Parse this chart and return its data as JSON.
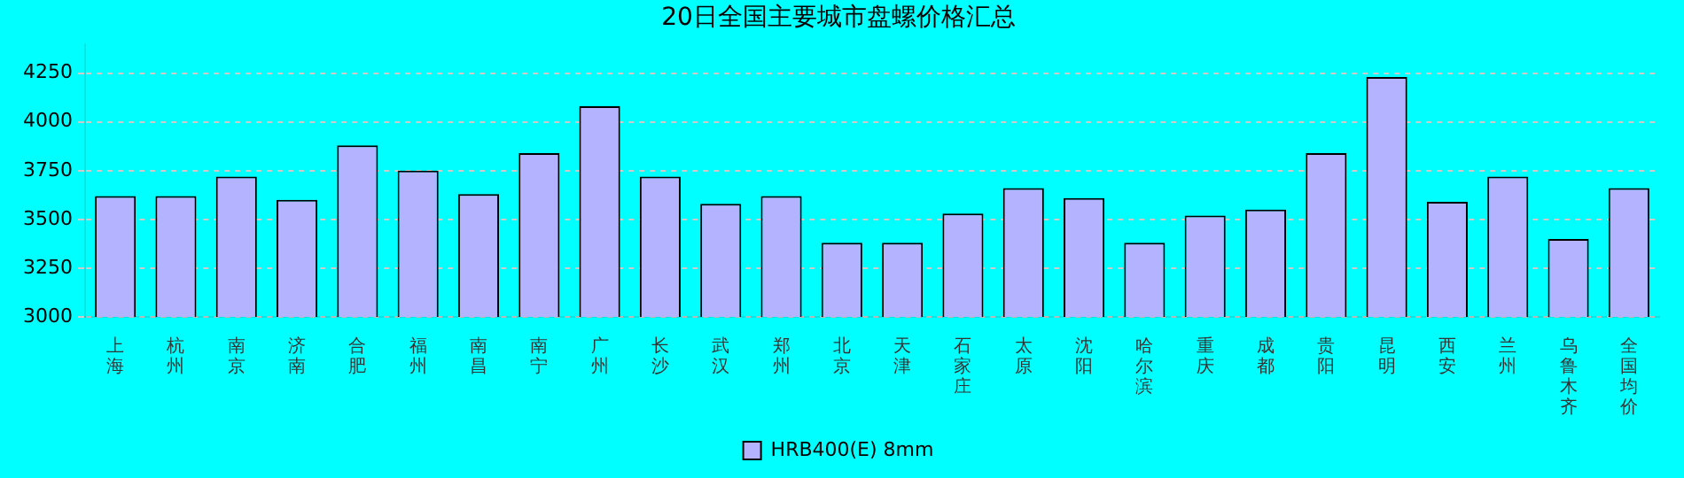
{
  "chart_data": {
    "type": "bar",
    "title": "20日全国主要城市盘螺价格汇总",
    "categories": [
      "上海",
      "杭州",
      "南京",
      "济南",
      "合肥",
      "福州",
      "南昌",
      "南宁",
      "广州",
      "长沙",
      "武汉",
      "郑州",
      "北京",
      "天津",
      "石家庄",
      "太原",
      "沈阳",
      "哈尔滨",
      "重庆",
      "成都",
      "贵阳",
      "昆明",
      "西安",
      "兰州",
      "乌鲁木齐",
      "全国均价"
    ],
    "series": [
      {
        "name": "HRB400(E) 8mm",
        "color": "#b3b3ff",
        "values": [
          3620,
          3620,
          3720,
          3600,
          3880,
          3750,
          3630,
          3840,
          4080,
          3720,
          3580,
          3620,
          3380,
          3380,
          3530,
          3660,
          3610,
          3380,
          3520,
          3550,
          3840,
          4230,
          3590,
          3720,
          3400,
          3660
        ]
      }
    ],
    "ylim": [
      3000,
      4400
    ],
    "yticks": [
      3000,
      3250,
      3500,
      3750,
      4000,
      4250
    ],
    "grid": "y",
    "legend": "bottom"
  }
}
